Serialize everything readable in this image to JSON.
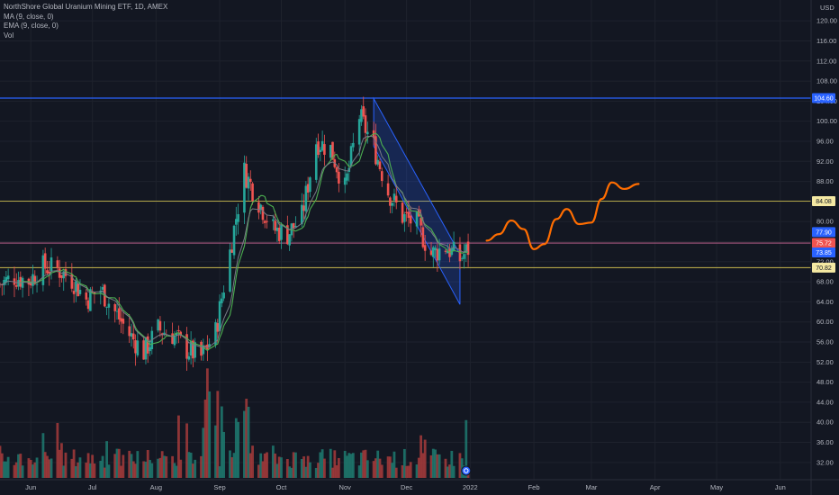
{
  "legend": {
    "title": "NorthShore Global Uranium Mining ETF, 1D, AMEX",
    "ma": "MA (9, close, 0)",
    "ema": "EMA (9, close, 0)",
    "vol": "Vol"
  },
  "colors": {
    "background": "#131722",
    "up": "#26a69a",
    "down": "#ef5350",
    "vol_up": "#1e7a70",
    "vol_down": "#a63b3b",
    "ma": "#4caf50",
    "ema": "#787b86",
    "channel": "#2962ff",
    "projection": "#ff6d00",
    "resistance": "#2962ff",
    "level_yellow": "#c9b94d",
    "level_pink": "#d16a9a",
    "level_purple": "#7e57c2"
  },
  "chart_data": {
    "type": "candlestick",
    "title": "NorthShore Global Uranium Mining ETF, 1D, AMEX",
    "currency": "USD",
    "y_axis_label": "USD",
    "y_ticks": [
      32,
      36,
      40,
      44,
      48,
      52,
      56,
      60,
      64,
      68,
      72,
      76,
      80,
      84,
      88,
      92,
      96,
      100,
      104,
      108,
      112,
      116,
      120
    ],
    "y_tick_labels": [
      "32.00",
      "36.00",
      "40.00",
      "44.00",
      "48.00",
      "52.00",
      "56.00",
      "60.00",
      "64.00",
      "68.00",
      "72.00",
      "76.00",
      "80.00",
      "84.00",
      "88.00",
      "92.00",
      "96.00",
      "100.00",
      "104.00",
      "108.00",
      "112.00",
      "116.00",
      "120.00"
    ],
    "ylim": [
      30,
      122
    ],
    "x_labels": [
      {
        "label": "Jun",
        "date": "2021-06-01"
      },
      {
        "label": "Jul",
        "date": "2021-07-01"
      },
      {
        "label": "Aug",
        "date": "2021-08-01"
      },
      {
        "label": "Sep",
        "date": "2021-09-01"
      },
      {
        "label": "Oct",
        "date": "2021-10-01"
      },
      {
        "label": "Nov",
        "date": "2021-11-01"
      },
      {
        "label": "Dec",
        "date": "2021-12-01"
      },
      {
        "label": "2022",
        "date": "2022-01-01"
      },
      {
        "label": "Feb",
        "date": "2022-02-01"
      },
      {
        "label": "Mar",
        "date": "2022-03-01"
      },
      {
        "label": "Apr",
        "date": "2022-04-01"
      },
      {
        "label": "May",
        "date": "2022-05-01"
      },
      {
        "label": "Jun",
        "date": "2022-06-01"
      }
    ],
    "xlim": [
      "2021-05-17",
      "2022-06-16"
    ],
    "price_levels": [
      {
        "value": 104.6,
        "label": "104.60",
        "color": "#2962ff",
        "style": "resistance"
      },
      {
        "value": 84.08,
        "label": "84.08",
        "color": "#c9b94d",
        "style": "level"
      },
      {
        "value": 75.72,
        "label": "75.72",
        "color": "#d16a9a",
        "style": "level"
      },
      {
        "value": 70.82,
        "label": "70.82",
        "color": "#c9b94d",
        "style": "level"
      }
    ],
    "price_markers": [
      {
        "value": 77.9,
        "label": "77.90",
        "color": "#2962ff"
      },
      {
        "value": 75.72,
        "label": "75.72",
        "color": "#ef5350"
      },
      {
        "value": 73.85,
        "label": "73.85",
        "color": "#2962ff"
      }
    ],
    "channel": {
      "upper_start": {
        "date": "2021-11-15",
        "price": 104.5
      },
      "upper_end": {
        "date": "2021-12-27",
        "price": 73.5
      },
      "lower_start": {
        "date": "2021-11-15",
        "price": 95
      },
      "lower_end": {
        "date": "2021-12-27",
        "price": 63.5
      }
    },
    "projection": [
      {
        "date": "2022-01-09",
        "price": 76.2
      },
      {
        "date": "2022-01-15",
        "price": 77.5
      },
      {
        "date": "2022-01-21",
        "price": 80.2
      },
      {
        "date": "2022-01-27",
        "price": 78.5
      },
      {
        "date": "2022-02-01",
        "price": 74.5
      },
      {
        "date": "2022-02-06",
        "price": 75.5
      },
      {
        "date": "2022-02-12",
        "price": 80.5
      },
      {
        "date": "2022-02-17",
        "price": 82.5
      },
      {
        "date": "2022-02-23",
        "price": 79.5
      },
      {
        "date": "2022-03-01",
        "price": 79.8
      },
      {
        "date": "2022-03-06",
        "price": 84.5
      },
      {
        "date": "2022-03-11",
        "price": 87.8
      },
      {
        "date": "2022-03-17",
        "price": 86.5
      },
      {
        "date": "2022-03-24",
        "price": 87.5
      }
    ],
    "close_series": [
      {
        "date": "2021-05-17",
        "close": 67.5
      },
      {
        "date": "2021-05-24",
        "close": 69.0
      },
      {
        "date": "2021-05-31",
        "close": 68.2
      },
      {
        "date": "2021-06-07",
        "close": 71.0
      },
      {
        "date": "2021-06-14",
        "close": 70.5
      },
      {
        "date": "2021-06-21",
        "close": 68.5
      },
      {
        "date": "2021-06-28",
        "close": 64.5
      },
      {
        "date": "2021-07-05",
        "close": 66.5
      },
      {
        "date": "2021-07-12",
        "close": 62.0
      },
      {
        "date": "2021-07-19",
        "close": 57.5
      },
      {
        "date": "2021-07-26",
        "close": 54.0
      },
      {
        "date": "2021-08-02",
        "close": 58.5
      },
      {
        "date": "2021-08-09",
        "close": 57.5
      },
      {
        "date": "2021-08-16",
        "close": 54.5
      },
      {
        "date": "2021-08-23",
        "close": 53.0
      },
      {
        "date": "2021-08-30",
        "close": 58.0
      },
      {
        "date": "2021-09-06",
        "close": 74.0
      },
      {
        "date": "2021-09-13",
        "close": 90.0
      },
      {
        "date": "2021-09-20",
        "close": 84.0
      },
      {
        "date": "2021-09-27",
        "close": 78.5
      },
      {
        "date": "2021-10-04",
        "close": 77.5
      },
      {
        "date": "2021-10-11",
        "close": 81.0
      },
      {
        "date": "2021-10-18",
        "close": 96.0
      },
      {
        "date": "2021-10-25",
        "close": 94.5
      },
      {
        "date": "2021-11-01",
        "close": 86.5
      },
      {
        "date": "2021-11-08",
        "close": 101.0
      },
      {
        "date": "2021-11-15",
        "close": 95.0
      },
      {
        "date": "2021-11-22",
        "close": 86.0
      },
      {
        "date": "2021-11-29",
        "close": 81.0
      },
      {
        "date": "2021-12-06",
        "close": 79.5
      },
      {
        "date": "2021-12-13",
        "close": 73.5
      },
      {
        "date": "2021-12-20",
        "close": 75.0
      },
      {
        "date": "2021-12-27",
        "close": 72.5
      },
      {
        "date": "2022-01-03",
        "close": 76.0
      }
    ],
    "volume_range": [
      0,
      50
    ]
  }
}
